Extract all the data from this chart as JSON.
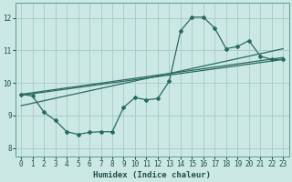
{
  "xlabel": "Humidex (Indice chaleur)",
  "xlim": [
    -0.5,
    23.5
  ],
  "ylim": [
    7.75,
    12.45
  ],
  "xticks": [
    0,
    1,
    2,
    3,
    4,
    5,
    6,
    7,
    8,
    9,
    10,
    11,
    12,
    13,
    14,
    15,
    16,
    17,
    18,
    19,
    20,
    21,
    22,
    23
  ],
  "yticks": [
    8,
    9,
    10,
    11,
    12
  ],
  "bg_color": "#cce8e4",
  "grid_color": "#aacfca",
  "line_color": "#276b60",
  "jagged_x": [
    0,
    1,
    2,
    3,
    4,
    5,
    6,
    7,
    8,
    9,
    10,
    11,
    12,
    13,
    14,
    15,
    16,
    17,
    18,
    19,
    20,
    21,
    22,
    23
  ],
  "jagged_y": [
    9.65,
    9.6,
    9.1,
    8.85,
    8.5,
    8.42,
    8.48,
    8.5,
    8.5,
    9.25,
    9.55,
    9.48,
    9.52,
    10.05,
    11.6,
    12.02,
    12.02,
    11.68,
    11.05,
    11.12,
    11.3,
    10.82,
    10.72,
    10.72
  ],
  "trend1_x": [
    0,
    23
  ],
  "trend1_y": [
    9.3,
    11.05
  ],
  "trend2_x": [
    0,
    23
  ],
  "trend2_y": [
    9.65,
    10.78
  ],
  "trend3_x": [
    0,
    23
  ],
  "trend3_y": [
    9.62,
    10.72
  ]
}
